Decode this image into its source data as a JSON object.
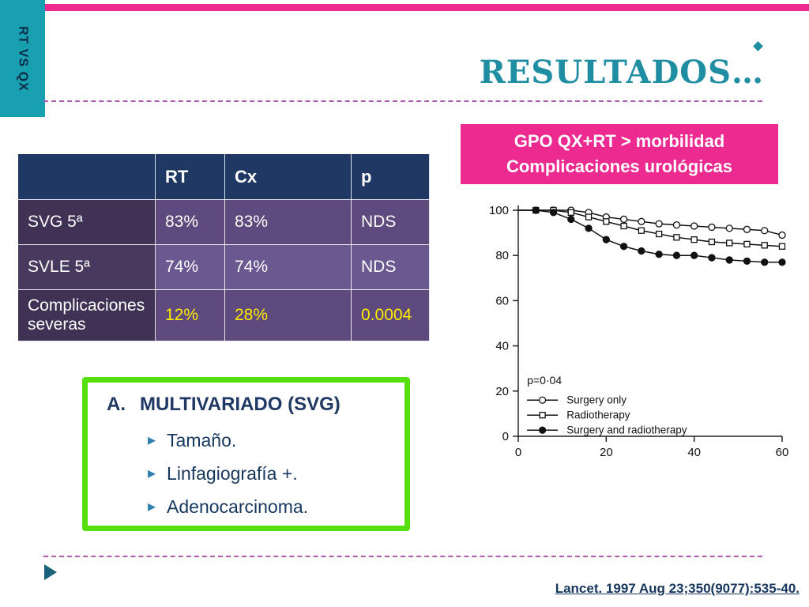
{
  "slide": {
    "side_tab_label": "RT VS QX",
    "title": "RESULTADOS…",
    "citation": "Lancet. 1997 Aug 23;350(9077):535-40."
  },
  "highlight_box": {
    "line1": "GPO QX+RT > morbilidad",
    "line2": "Complicaciones urológicas"
  },
  "results_table": {
    "col_headers": [
      "RT",
      "Cx",
      "p"
    ],
    "rows": [
      {
        "label": "SVG 5ª",
        "rt": "83%",
        "cx": "83%",
        "p": "NDS"
      },
      {
        "label": "SVLE 5ª",
        "rt": "74%",
        "cx": "74%",
        "p": "NDS"
      },
      {
        "label": "Complicaciones severas",
        "rt": "12%",
        "cx": "28%",
        "p": "0.0004"
      }
    ]
  },
  "multivariate_box": {
    "heading_prefix": "A.",
    "heading": "MULTIVARIADO (SVG)",
    "items": [
      "Tamaño.",
      "Linfagiografía +.",
      "Adenocarcinoma."
    ]
  },
  "chart_data": {
    "type": "line",
    "title": "",
    "xlabel": "",
    "ylabel": "",
    "xlim": [
      0,
      60
    ],
    "ylim": [
      0,
      100
    ],
    "xticks": [
      0,
      20,
      40,
      60
    ],
    "yticks": [
      0,
      20,
      40,
      60,
      80,
      100
    ],
    "grid": false,
    "legend_position": "lower-left",
    "annotation": "p=0·04",
    "series": [
      {
        "name": "Surgery only",
        "marker": "circle-open",
        "points": [
          [
            0,
            100
          ],
          [
            4,
            100
          ],
          [
            8,
            100
          ],
          [
            12,
            100
          ],
          [
            16,
            99
          ],
          [
            20,
            97
          ],
          [
            24,
            96
          ],
          [
            28,
            95
          ],
          [
            32,
            94
          ],
          [
            36,
            93.5
          ],
          [
            40,
            93
          ],
          [
            44,
            92.5
          ],
          [
            48,
            92
          ],
          [
            52,
            91.5
          ],
          [
            56,
            91
          ],
          [
            60,
            89
          ]
        ]
      },
      {
        "name": "Radiotherapy",
        "marker": "square-open",
        "points": [
          [
            0,
            100
          ],
          [
            4,
            100
          ],
          [
            8,
            100
          ],
          [
            12,
            99
          ],
          [
            16,
            97
          ],
          [
            20,
            95
          ],
          [
            24,
            93
          ],
          [
            28,
            91
          ],
          [
            32,
            89.5
          ],
          [
            36,
            88
          ],
          [
            40,
            87
          ],
          [
            44,
            86
          ],
          [
            48,
            85.5
          ],
          [
            52,
            85
          ],
          [
            56,
            84.5
          ],
          [
            60,
            84
          ]
        ]
      },
      {
        "name": "Surgery and radiotherapy",
        "marker": "circle-filled",
        "points": [
          [
            0,
            100
          ],
          [
            4,
            100
          ],
          [
            8,
            99
          ],
          [
            12,
            96
          ],
          [
            16,
            92
          ],
          [
            20,
            87
          ],
          [
            24,
            84
          ],
          [
            28,
            82
          ],
          [
            32,
            80.5
          ],
          [
            36,
            80
          ],
          [
            40,
            80
          ],
          [
            44,
            79
          ],
          [
            48,
            78
          ],
          [
            52,
            77.5
          ],
          [
            56,
            77
          ],
          [
            60,
            77
          ]
        ]
      }
    ]
  },
  "colors": {
    "accent_pink": "#EC2A90",
    "accent_teal": "#18A0B0",
    "title_teal": "#1F8EA3",
    "navy": "#17375E",
    "table_header": "#1F3864",
    "table_label_col": "#3F3254",
    "table_cell": "#5E4A7D",
    "table_cell_alt": "#6A5890",
    "highlight_yellow": "#FFEB00",
    "green_border": "#55DF0F",
    "dash_purple": "#B35AB3"
  }
}
